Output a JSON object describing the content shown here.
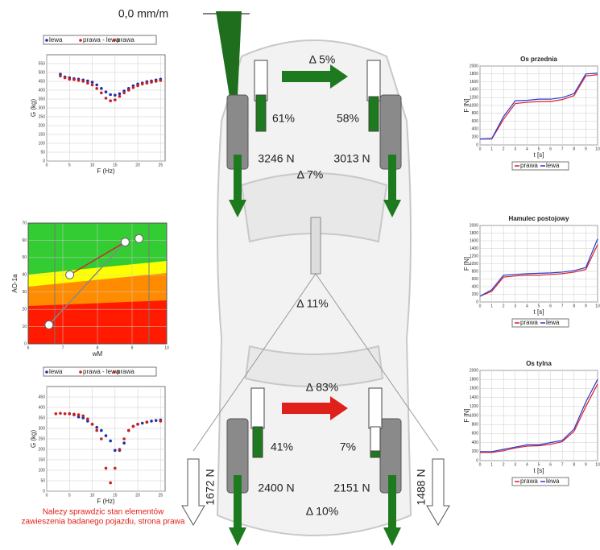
{
  "car": {
    "toe": "0,0 mm/m",
    "front_delta_shock": "Δ 5%",
    "front_left_shock": "61%",
    "front_right_shock": "58%",
    "front_left_force": "3246 N",
    "front_right_force": "3013 N",
    "front_delta_brake": "Δ 7%",
    "park_delta": "Δ 11%",
    "rear_delta_shock": "Δ 83%",
    "rear_left_shock": "41%",
    "rear_right_shock": "7%",
    "rear_left_force": "2400 N",
    "rear_right_force": "2151 N",
    "rear_delta_brake": "Δ 10%",
    "park_left_force": "1672 N",
    "park_right_force": "1488 N"
  },
  "warning": [
    "Nalezy sprawdzic stan elementów",
    "zawieszenia badanego pojazdu, strona prawa"
  ],
  "susp_front": {
    "ylabel": "G (kg)",
    "xlabel": "F (Hz)",
    "legend": [
      "lewa",
      "prawa - lewa",
      "prawa"
    ],
    "xlim": [
      0,
      26
    ],
    "ylim": [
      0,
      600
    ],
    "xticks": [
      0,
      5,
      10,
      15,
      20,
      25
    ],
    "yticks": [
      0,
      50,
      100,
      150,
      200,
      250,
      300,
      350,
      400,
      450,
      500,
      550
    ],
    "series": [
      {
        "name": "lewa",
        "color": "#1f2fa8",
        "x": [
          3,
          4,
          5,
          6,
          7,
          8,
          9,
          10,
          11,
          12,
          13,
          14,
          15,
          16,
          17,
          18,
          19,
          20,
          21,
          22,
          23,
          24,
          25
        ],
        "values": [
          490,
          475,
          470,
          465,
          462,
          458,
          452,
          445,
          430,
          410,
          390,
          375,
          372,
          380,
          395,
          410,
          425,
          435,
          440,
          448,
          452,
          458,
          462
        ]
      },
      {
        "name": "prawa",
        "color": "#c8201e",
        "x": [
          3,
          4,
          5,
          6,
          7,
          8,
          9,
          10,
          11,
          12,
          13,
          14,
          15,
          16,
          17,
          18,
          19,
          20,
          21,
          22,
          23,
          24,
          25
        ],
        "values": [
          480,
          470,
          462,
          460,
          455,
          450,
          440,
          430,
          410,
          385,
          355,
          340,
          345,
          365,
          385,
          400,
          415,
          425,
          435,
          440,
          445,
          450,
          455
        ]
      }
    ]
  },
  "zone_chart": {
    "ylabel": "AO-1a",
    "xlabel": "wM",
    "xlim": [
      6,
      10
    ],
    "ylim": [
      0,
      70
    ],
    "xticks": [
      6,
      7,
      8,
      9,
      10
    ],
    "yticks": [
      0,
      10,
      20,
      30,
      40,
      50,
      60,
      70
    ],
    "points": {
      "x": [
        6.6,
        7.2,
        8.8,
        9.2
      ],
      "values": [
        11,
        40,
        59,
        61
      ]
    }
  },
  "susp_rear": {
    "ylabel": "G (kg)",
    "xlabel": "F (Hz)",
    "legend": [
      "lewa",
      "prawa - lewa",
      "prawa"
    ],
    "xlim": [
      0,
      26
    ],
    "ylim": [
      0,
      500
    ],
    "xticks": [
      0,
      5,
      10,
      15,
      20,
      25
    ],
    "yticks": [
      0,
      50,
      100,
      150,
      200,
      250,
      300,
      350,
      400,
      450
    ],
    "series": [
      {
        "name": "lewa",
        "color": "#1f2fa8",
        "x": [
          5,
          6,
          7,
          8,
          9,
          10,
          11,
          12,
          13,
          14,
          15,
          16,
          17,
          18,
          19,
          20,
          21,
          22,
          23,
          24,
          25
        ],
        "values": [
          370,
          365,
          355,
          350,
          335,
          320,
          305,
          290,
          265,
          240,
          195,
          195,
          230,
          290,
          310,
          320,
          325,
          330,
          335,
          338,
          340
        ]
      },
      {
        "name": "prawa",
        "color": "#c8201e",
        "x": [
          2,
          3,
          4,
          5,
          6,
          7,
          8,
          9,
          10,
          11,
          12,
          13,
          14,
          15,
          16,
          17,
          18,
          19,
          20,
          22,
          25
        ],
        "values": [
          370,
          372,
          370,
          370,
          368,
          365,
          360,
          345,
          320,
          290,
          250,
          110,
          40,
          110,
          200,
          250,
          290,
          310,
          320,
          330,
          335
        ]
      }
    ]
  },
  "brake_charts": [
    {
      "title": "Os przednia",
      "ylabel": "F [N]",
      "xlabel": "t [s]",
      "legend": [
        "prawa",
        "lewa"
      ],
      "xlim": [
        0,
        10
      ],
      "ylim": [
        0,
        2000
      ],
      "xticks": [
        0,
        1,
        2,
        3,
        4,
        5,
        6,
        7,
        8,
        9,
        10
      ],
      "yticks": [
        0,
        200,
        400,
        600,
        800,
        1000,
        1200,
        1400,
        1600,
        1800,
        2000
      ],
      "x": [
        0,
        1,
        2,
        3,
        4,
        5,
        6,
        7,
        8,
        9,
        10
      ],
      "series": [
        {
          "name": "prawa",
          "color": "#d8202a",
          "values": [
            150,
            150,
            650,
            1050,
            1080,
            1100,
            1100,
            1150,
            1250,
            1750,
            1780
          ]
        },
        {
          "name": "lewa",
          "color": "#2a3ad0",
          "values": [
            150,
            160,
            720,
            1120,
            1130,
            1160,
            1160,
            1200,
            1300,
            1800,
            1820
          ]
        }
      ]
    },
    {
      "title": "Hamulec postojowy",
      "ylabel": "F [N]",
      "xlabel": "t [s]",
      "legend": [
        "prawa",
        "lewa"
      ],
      "xlim": [
        0,
        10
      ],
      "ylim": [
        0,
        2000
      ],
      "xticks": [
        0,
        1,
        2,
        3,
        4,
        5,
        6,
        7,
        8,
        9,
        10
      ],
      "yticks": [
        0,
        200,
        400,
        600,
        800,
        1000,
        1200,
        1400,
        1600,
        1800,
        2000
      ],
      "x": [
        0,
        1,
        2,
        3,
        4,
        5,
        6,
        7,
        8,
        9,
        10
      ],
      "series": [
        {
          "name": "prawa",
          "color": "#d8202a",
          "values": [
            150,
            280,
            650,
            680,
            700,
            700,
            720,
            740,
            780,
            850,
            1500
          ]
        },
        {
          "name": "lewa",
          "color": "#2a3ad0",
          "values": [
            150,
            320,
            700,
            720,
            740,
            750,
            760,
            780,
            820,
            900,
            1650
          ]
        }
      ]
    },
    {
      "title": "Os tylna",
      "ylabel": "F [N]",
      "xlabel": "t [s]",
      "legend": [
        "prawa",
        "lewa"
      ],
      "xlim": [
        0,
        10
      ],
      "ylim": [
        0,
        2000
      ],
      "xticks": [
        0,
        1,
        2,
        3,
        4,
        5,
        6,
        7,
        8,
        9,
        10
      ],
      "yticks": [
        0,
        200,
        400,
        600,
        800,
        1000,
        1200,
        1400,
        1600,
        1800,
        2000
      ],
      "x": [
        0,
        1,
        2,
        3,
        4,
        5,
        6,
        7,
        8,
        9,
        10
      ],
      "series": [
        {
          "name": "prawa",
          "color": "#d8202a",
          "values": [
            180,
            180,
            220,
            280,
            320,
            330,
            360,
            420,
            650,
            1200,
            1700
          ]
        },
        {
          "name": "lewa",
          "color": "#2a3ad0",
          "values": [
            200,
            200,
            250,
            300,
            350,
            350,
            400,
            450,
            700,
            1300,
            1800
          ]
        }
      ]
    }
  ]
}
